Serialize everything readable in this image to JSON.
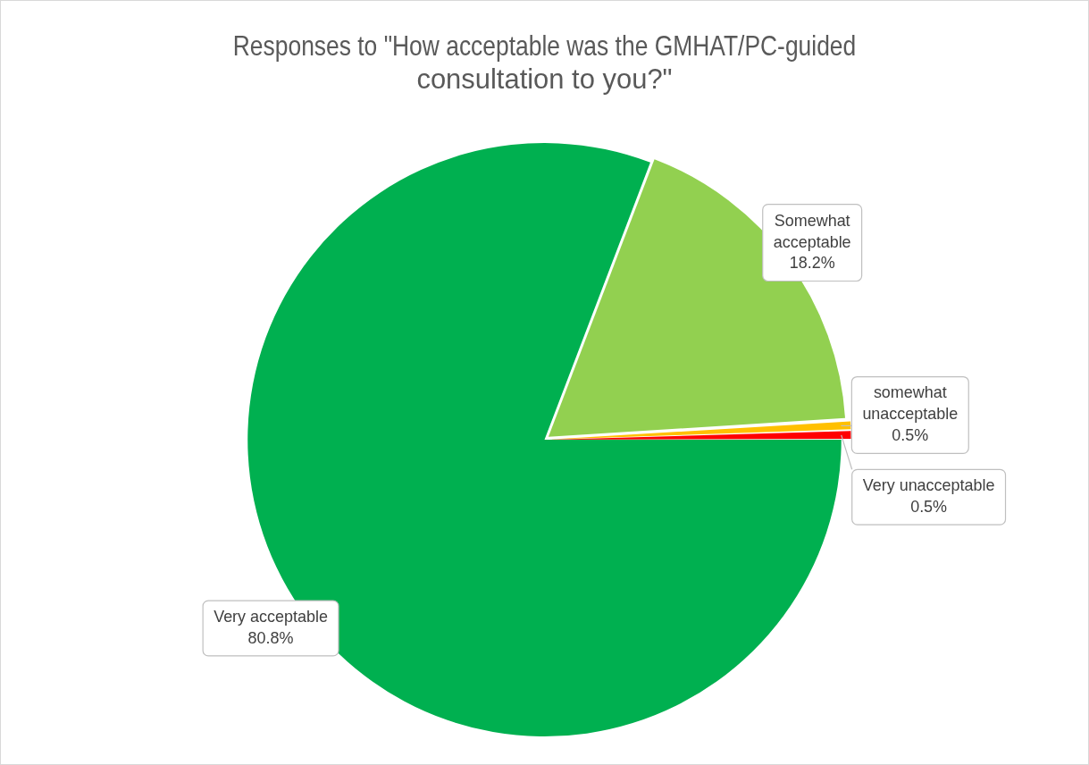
{
  "chart_data": {
    "type": "pie",
    "title": "Responses to \"How acceptable was the GMHAT/PC-guided consultation to you?\"",
    "categories": [
      "Very acceptable",
      "Somewhat acceptable",
      "somewhat unacceptable",
      "Very unacceptable"
    ],
    "values": [
      80.8,
      18.2,
      0.5,
      0.5
    ],
    "value_labels": [
      "80.8%",
      "18.2%",
      "0.5%",
      "0.5%"
    ],
    "colors": [
      "#00b050",
      "#92d050",
      "#ffc000",
      "#ff0000"
    ],
    "legend": false
  }
}
